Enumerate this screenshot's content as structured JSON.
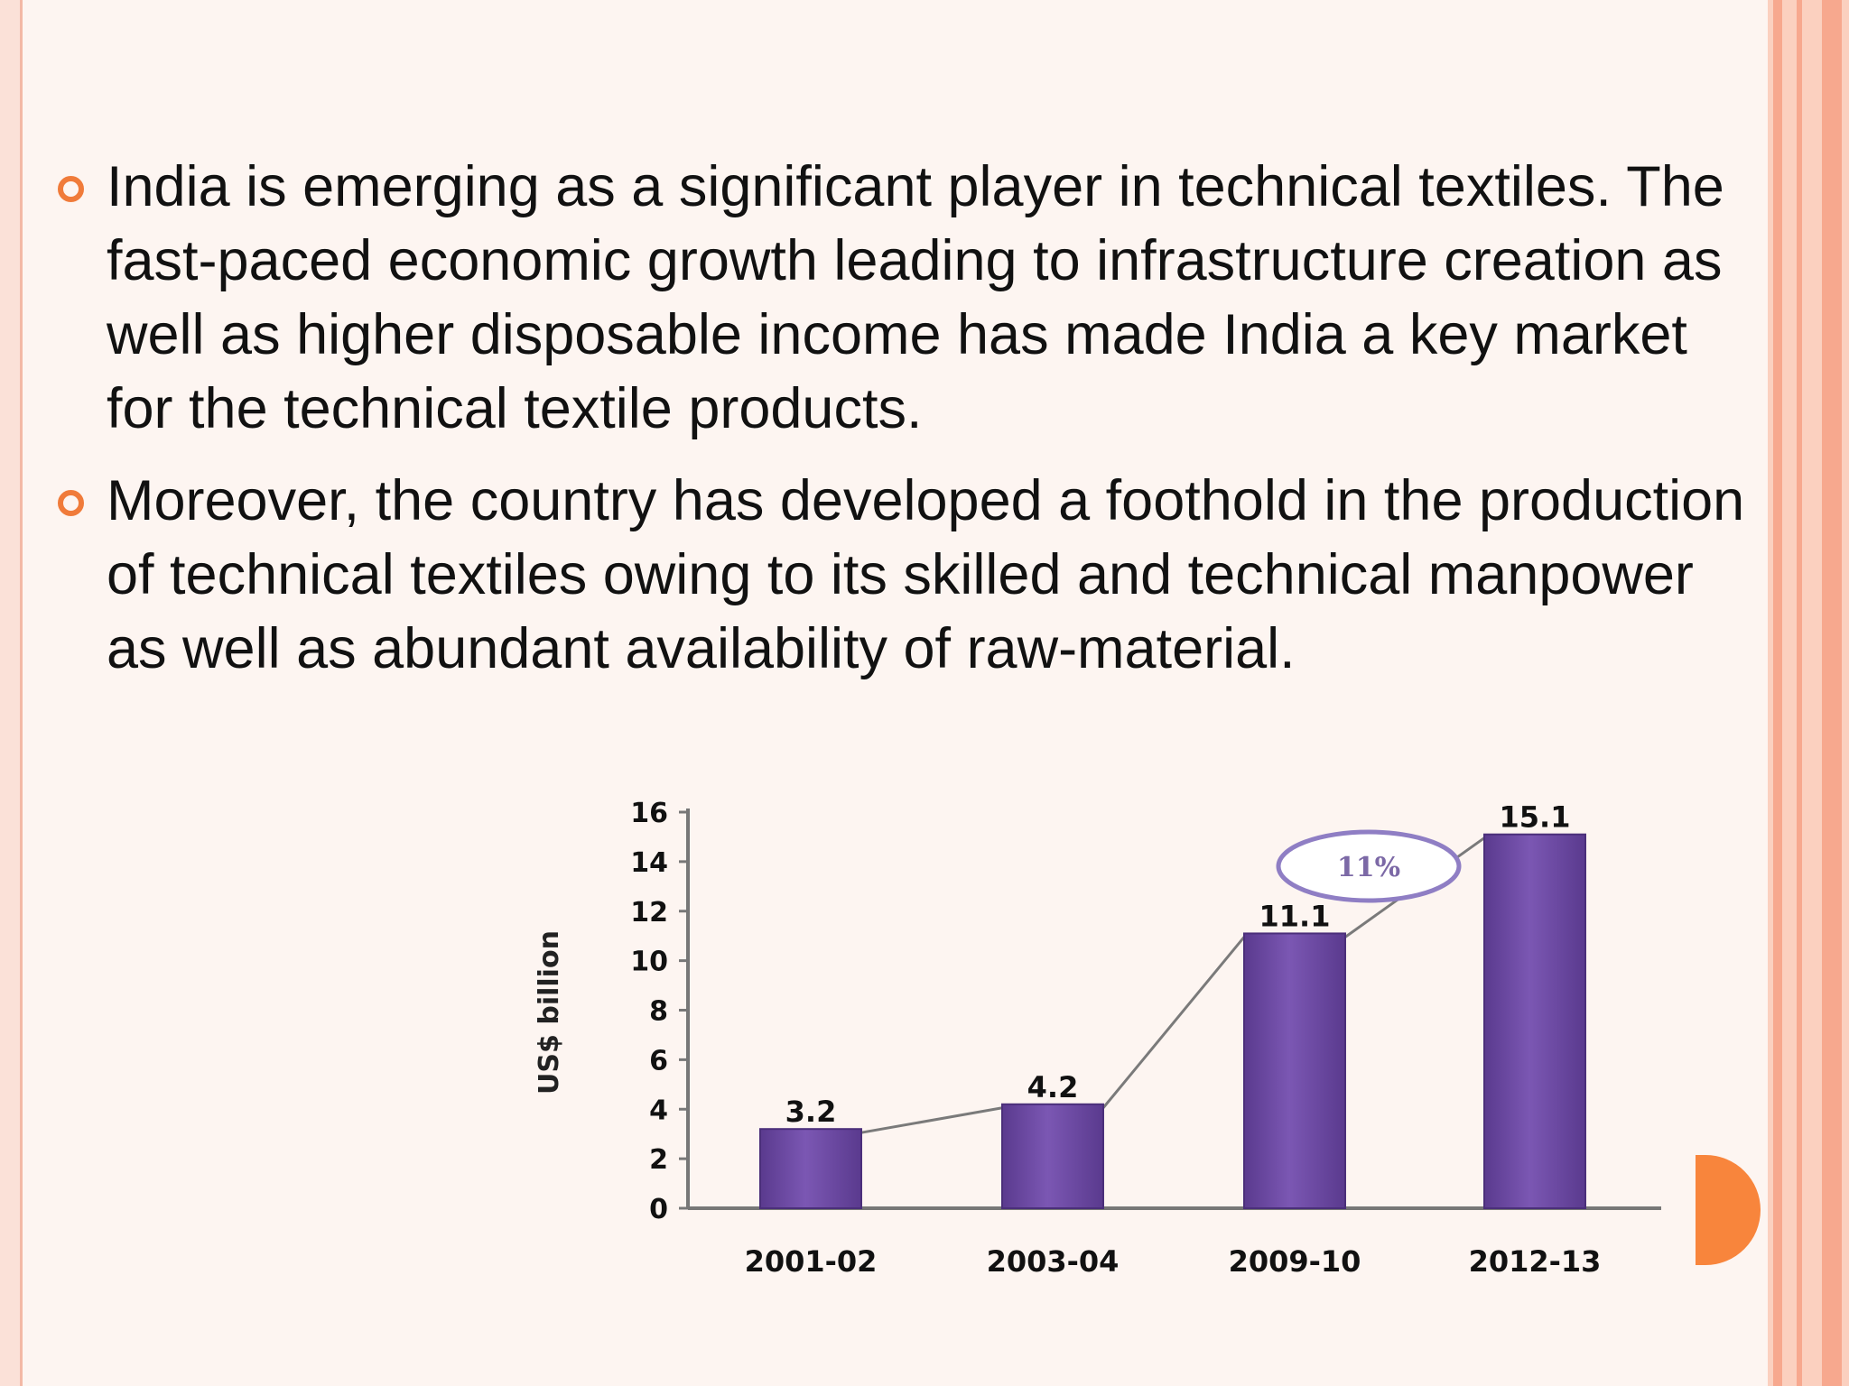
{
  "bullets": [
    {
      "text": "India is emerging as a significant player in technical textiles. The fast-paced economic growth leading to infrastructure creation as well as higher disposable income has made India a key market for the technical textile products."
    },
    {
      "text": " Moreover, the country has developed a foothold in the production of technical textiles owing to its skilled and technical manpower as well as abundant availability of raw-material."
    }
  ],
  "colors": {
    "accent": "#f07b3a",
    "bar": "#7b57b3",
    "bar_dark": "#5a3a8e",
    "connector_line": "#7a7a7a",
    "annotation_oval": "#8f7ec4"
  },
  "chart_data": {
    "type": "bar",
    "categories": [
      "2001-02",
      "2003-04",
      "2009-10",
      "2012-13"
    ],
    "values": [
      3.2,
      4.2,
      11.1,
      15.1
    ],
    "value_labels": [
      "3.2",
      "4.2",
      "11.1",
      "15.1"
    ],
    "ylabel": "US$ billion",
    "ylim": [
      0,
      16
    ],
    "yticks": [
      0,
      2,
      4,
      6,
      8,
      10,
      12,
      14,
      16
    ],
    "connecting_line": true,
    "annotation": {
      "text": "11%"
    },
    "grid": false,
    "legend": "none"
  }
}
